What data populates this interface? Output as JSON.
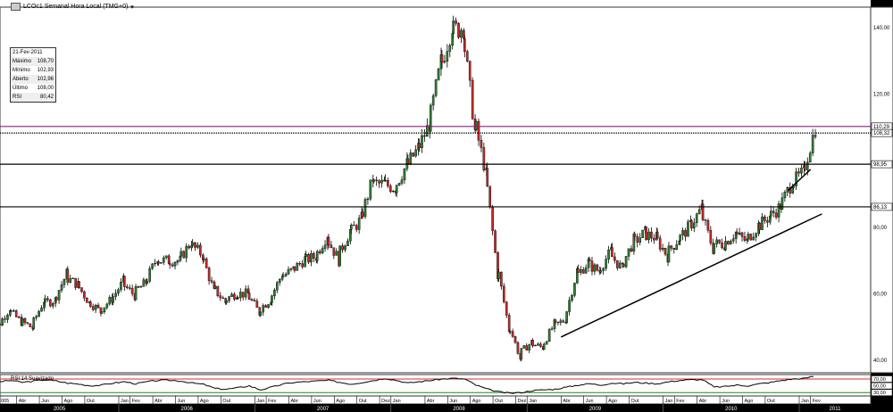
{
  "window": {
    "title": "LCOc1 Semanal Hora Local (TMG+0)",
    "dropdown_icon": "caret-down-icon"
  },
  "info_box": {
    "date": "21-Fev-2011",
    "rows": [
      {
        "label": "Máximo",
        "value": "108,70"
      },
      {
        "label": "Mínimo",
        "value": "102,93"
      },
      {
        "label": "Aberto",
        "value": "102,96"
      },
      {
        "label": "Último",
        "value": "108,00"
      },
      {
        "label": "RSI",
        "value": "80,42"
      }
    ]
  },
  "chart_data": {
    "type": "candlestick",
    "frequency": "weekly",
    "monthly_closes_start": "2005-01",
    "monthly_closes": [
      47,
      50,
      55,
      52,
      50,
      57,
      58,
      65,
      63,
      58,
      55,
      58,
      63,
      60,
      63,
      70,
      70,
      70,
      75,
      72,
      62,
      58,
      60,
      60,
      55,
      58,
      65,
      67,
      70,
      71,
      77,
      71,
      78,
      82,
      93,
      93,
      92,
      98,
      103,
      110,
      127,
      139,
      140,
      113,
      98,
      70,
      52,
      42,
      45,
      44,
      50,
      52,
      65,
      69,
      67,
      72,
      68,
      75,
      78,
      77,
      72,
      76,
      80,
      85,
      75,
      75,
      78,
      76,
      80,
      83,
      86,
      93,
      96,
      108
    ],
    "ylim": [
      35,
      148
    ],
    "y_ticks": [
      "40,00",
      "60,00",
      "80,00",
      "100,00",
      "120,00",
      "140,00"
    ],
    "y_tick_values": [
      40,
      60,
      80,
      100,
      120,
      140
    ],
    "colors": {
      "up": "#2e7d32",
      "down": "#c62828"
    },
    "horizontal_lines": [
      {
        "value": 110.29,
        "label": "110,29",
        "color": "#7b2d6b",
        "style": "solid"
      },
      {
        "value": 108.32,
        "label": "108,32",
        "color": "#000000",
        "style": "dotted"
      },
      {
        "value": 98.95,
        "label": "98,95",
        "color": "#000000",
        "style": "solid"
      },
      {
        "value": 86.13,
        "label": "86,13",
        "color": "#000000",
        "style": "solid"
      }
    ],
    "trendlines": [
      {
        "from": {
          "date": "2009-04",
          "value": 47
        },
        "to": {
          "date": "2011-03",
          "value": 84
        }
      },
      {
        "from": {
          "date": "2010-12",
          "value": 91
        },
        "to": {
          "date": "2011-02",
          "value": 97.4
        }
      }
    ],
    "rsi": {
      "label": "RSI 14 Suavizado",
      "levels": [
        {
          "value": 70,
          "label": "70,00",
          "color": "#d32f2f"
        },
        {
          "value": 50,
          "label": "50,00"
        },
        {
          "value": 30,
          "label": "30,00",
          "color": "#2e7d32"
        }
      ],
      "monthly_values": [
        68,
        62,
        66,
        60,
        64,
        68,
        64,
        58,
        55,
        50,
        52,
        58,
        62,
        56,
        62,
        66,
        66,
        64,
        58,
        54,
        42,
        40,
        44,
        50,
        38,
        46,
        55,
        60,
        62,
        64,
        66,
        60,
        55,
        60,
        66,
        72,
        66,
        58,
        62,
        66,
        70,
        72,
        70,
        52,
        40,
        32,
        28,
        30,
        36,
        38,
        40,
        46,
        52,
        56,
        52,
        58,
        56,
        60,
        58,
        56,
        62,
        66,
        68,
        68,
        46,
        48,
        52,
        50,
        56,
        60,
        66,
        70,
        72,
        80
      ]
    },
    "month_labels": [
      {
        "date": "2005-01",
        "label": "005"
      },
      {
        "date": "2005-04",
        "label": "Abr"
      },
      {
        "date": "2005-06",
        "label": "Jun"
      },
      {
        "date": "2005-08",
        "label": "Ago"
      },
      {
        "date": "2005-10",
        "label": "Out"
      },
      {
        "date": "2006-01",
        "label": "Jan"
      },
      {
        "date": "2006-02",
        "label": "Fev"
      },
      {
        "date": "2006-04",
        "label": "Abr"
      },
      {
        "date": "2006-06",
        "label": "Jun"
      },
      {
        "date": "2006-08",
        "label": "Ago"
      },
      {
        "date": "2006-10",
        "label": "Out"
      },
      {
        "date": "2007-01",
        "label": "Jan"
      },
      {
        "date": "2007-02",
        "label": "Fev"
      },
      {
        "date": "2007-04",
        "label": "Abr"
      },
      {
        "date": "2007-06",
        "label": "Jun"
      },
      {
        "date": "2007-08",
        "label": "Ago"
      },
      {
        "date": "2007-10",
        "label": "Out"
      },
      {
        "date": "2007-12",
        "label": "Dez"
      },
      {
        "date": "2008-01",
        "label": "Jan"
      },
      {
        "date": "2008-04",
        "label": "Abr"
      },
      {
        "date": "2008-06",
        "label": "Jun"
      },
      {
        "date": "2008-08",
        "label": "Ago"
      },
      {
        "date": "2008-10",
        "label": "Out"
      },
      {
        "date": "2008-12",
        "label": "Dez"
      },
      {
        "date": "2009-01",
        "label": "Jan"
      },
      {
        "date": "2009-04",
        "label": "Abr"
      },
      {
        "date": "2009-06",
        "label": "Jun"
      },
      {
        "date": "2009-08",
        "label": "Ago"
      },
      {
        "date": "2009-10",
        "label": "Out"
      },
      {
        "date": "2010-01",
        "label": "Jan"
      },
      {
        "date": "2010-02",
        "label": "Fev"
      },
      {
        "date": "2010-04",
        "label": "Abr"
      },
      {
        "date": "2010-06",
        "label": "Jun"
      },
      {
        "date": "2010-08",
        "label": "Ago"
      },
      {
        "date": "2010-10",
        "label": "Out"
      },
      {
        "date": "2011-01",
        "label": "Jan"
      },
      {
        "date": "2011-02",
        "label": "Fev"
      }
    ],
    "year_labels": [
      "2005",
      "2006",
      "2007",
      "2008",
      "2009",
      "2010",
      "2011"
    ]
  }
}
